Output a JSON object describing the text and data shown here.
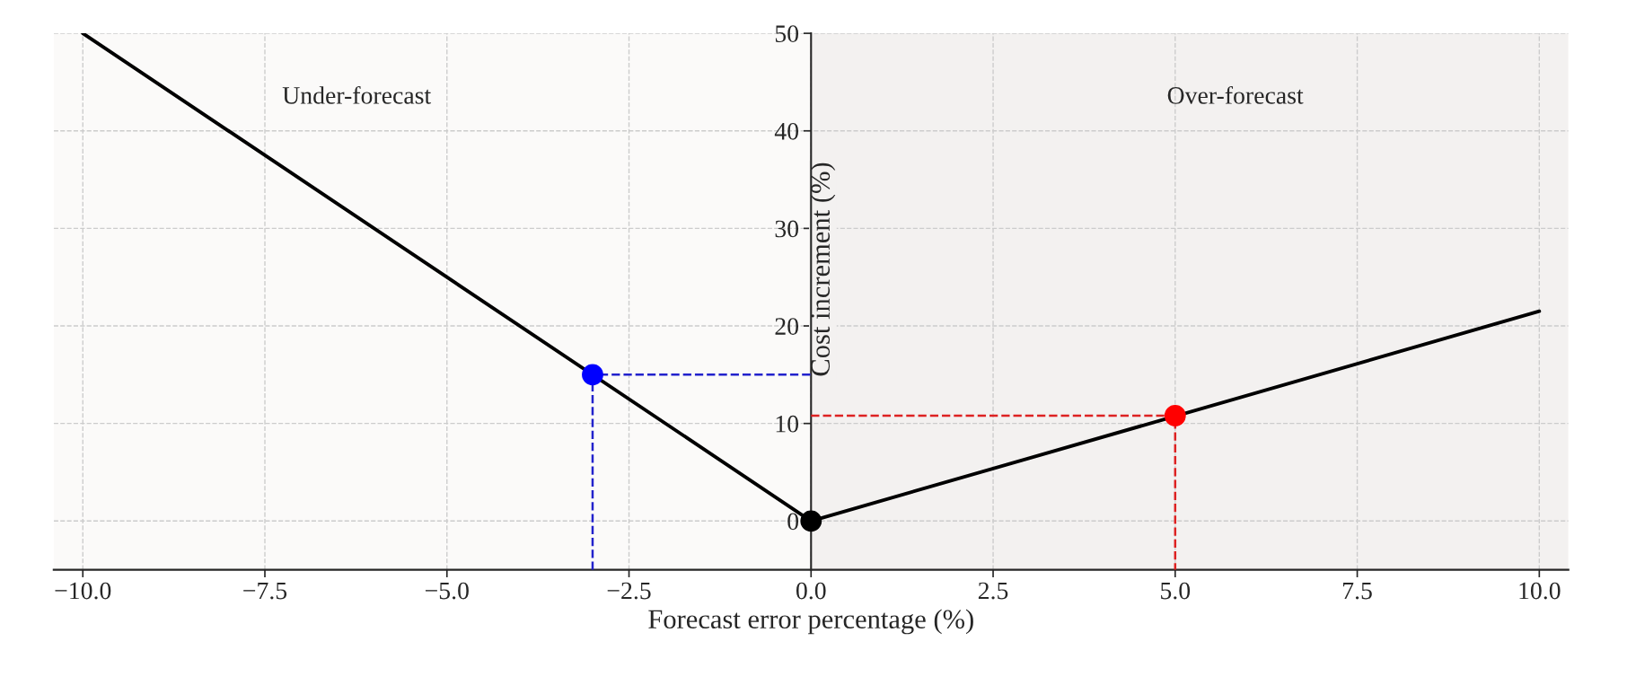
{
  "chart_data": {
    "type": "line",
    "xlabel": "Forecast error percentage (%)",
    "ylabel": "Cost increment (%)",
    "xlim": [
      -10.4,
      10.4
    ],
    "ylim": [
      -5,
      50
    ],
    "xticks": [
      {
        "value": -10,
        "label": "−10.0"
      },
      {
        "value": -7.5,
        "label": "−7.5"
      },
      {
        "value": -5,
        "label": "−5.0"
      },
      {
        "value": -2.5,
        "label": "−2.5"
      },
      {
        "value": 0,
        "label": "0.0"
      },
      {
        "value": 2.5,
        "label": "2.5"
      },
      {
        "value": 5,
        "label": "5.0"
      },
      {
        "value": 7.5,
        "label": "7.5"
      },
      {
        "value": 10,
        "label": "10.0"
      }
    ],
    "yticks": [
      0,
      10,
      20,
      30,
      40,
      50
    ],
    "grid": true,
    "legend": false,
    "bands": [
      {
        "axis": "x",
        "from": -10.4,
        "to": 0,
        "color": "#fbfaf9"
      },
      {
        "axis": "x",
        "from": 0,
        "to": 10.4,
        "color": "#f3f1f0"
      }
    ],
    "annotations": [
      "Under-forecast",
      "Over-forecast"
    ],
    "series": [
      {
        "type": "line",
        "x": [
          -10,
          0,
          10
        ],
        "values": [
          50,
          0,
          21.5
        ],
        "color": "#000000",
        "line_style": "solid",
        "marker": "none"
      },
      {
        "type": "line",
        "x": [
          -3,
          -3,
          0
        ],
        "values": [
          -5,
          15,
          15
        ],
        "color": "#2222cc",
        "line_style": "dashed",
        "marker": "none"
      },
      {
        "type": "line",
        "x": [
          0,
          5,
          5
        ],
        "values": [
          10.8,
          10.8,
          -5
        ],
        "color": "#dd2222",
        "line_style": "dashed",
        "marker": "none"
      },
      {
        "type": "scatter",
        "x": [
          -3,
          5,
          0
        ],
        "values": [
          15,
          10.8,
          0
        ],
        "colors": [
          "#0000ff",
          "#ff0000",
          "#000000"
        ],
        "marker": "circle"
      }
    ]
  }
}
